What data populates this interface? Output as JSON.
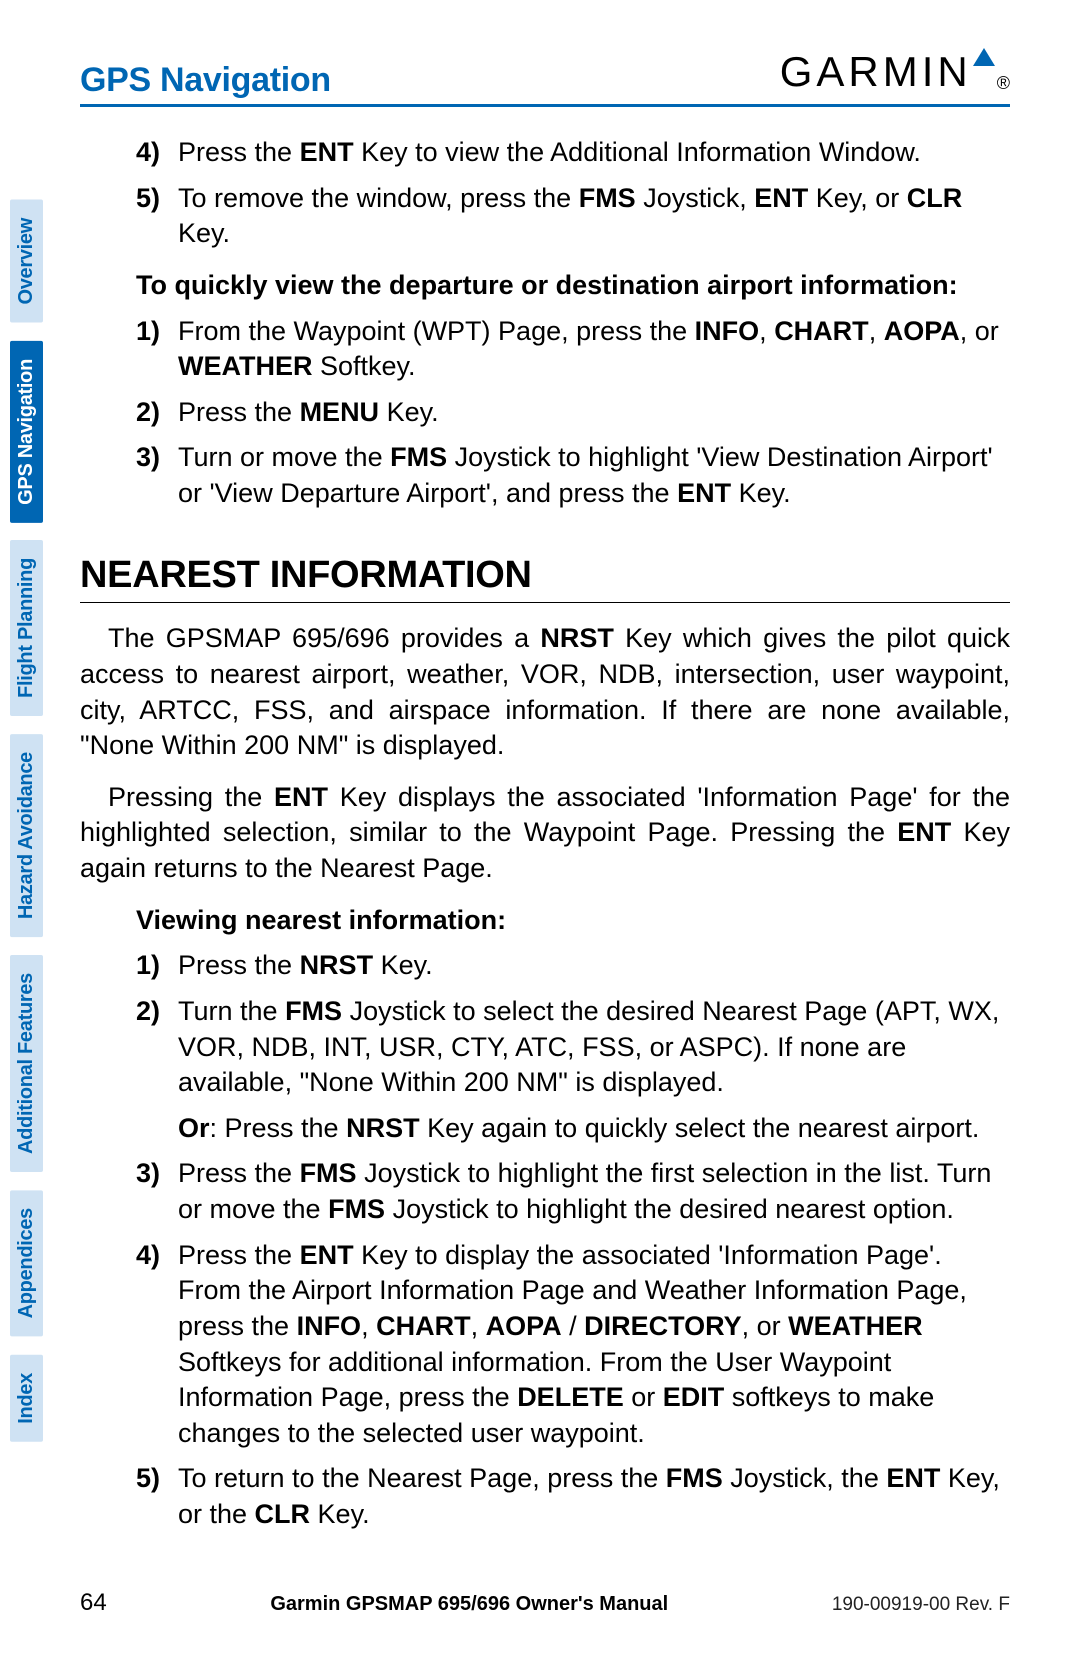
{
  "header": {
    "section_title": "GPS Navigation",
    "logo_text": "GARMIN"
  },
  "side_tabs": [
    {
      "label": "Overview",
      "active": false
    },
    {
      "label": "GPS Navigation",
      "active": true
    },
    {
      "label": "Flight Planning",
      "active": false
    },
    {
      "label": "Hazard Avoidance",
      "active": false
    },
    {
      "label": "Additional Features",
      "active": false
    },
    {
      "label": "Appendices",
      "active": false
    },
    {
      "label": "Index",
      "active": false
    }
  ],
  "top_list": [
    {
      "num": "4)",
      "html": "Press the <b>ENT</b> Key to view the Additional Information Window."
    },
    {
      "num": "5)",
      "html": "To remove the window, press the <b>FMS</b> Joystick, <b>ENT</b> Key, or <b>CLR</b> Key."
    }
  ],
  "quick_view_heading": "To quickly view the departure or destination airport information:",
  "quick_view_list": [
    {
      "num": "1)",
      "html": "From the Waypoint (WPT) Page, press the <b>INFO</b>, <b>CHART</b>, <b>AOPA</b>, or <b>WEATHER</b> Softkey."
    },
    {
      "num": "2)",
      "html": "Press the <b>MENU</b> Key."
    },
    {
      "num": "3)",
      "html": "Turn or move the <b>FMS</b> Joystick to highlight 'View Destination Airport' or 'View Departure Airport', and press the <b>ENT</b> Key."
    }
  ],
  "h2": "Nearest Information",
  "paragraphs": [
    "The GPSMAP 695/696 provides a <b>NRST</b> Key which gives the pilot quick access to nearest airport, weather, VOR, NDB, intersection, user waypoint, city, ARTCC, FSS, and airspace information.  If there are none available, \"None Within 200 NM\" is displayed.",
    "Pressing the <b>ENT</b> Key displays the associated 'Information Page' for the highlighted selection, similar to the Waypoint Page.  Pressing the <b>ENT</b> Key again returns to the Nearest Page."
  ],
  "viewing_heading": "Viewing nearest information:",
  "viewing_list": [
    {
      "num": "1)",
      "html": "Press the <b>NRST</b> Key."
    },
    {
      "num": "2)",
      "html": "Turn the <b>FMS</b> Joystick to select the desired Nearest Page (APT, WX, VOR, NDB, INT, USR, CTY, ATC, FSS, or ASPC).  If none are available, \"None Within 200 NM\" is displayed.",
      "sub_html": "<b>Or</b>: Press the <b>NRST</b> Key again to quickly select the nearest airport."
    },
    {
      "num": "3)",
      "html": "Press the <b>FMS</b> Joystick to highlight the first selection in the list.  Turn or move the <b>FMS</b> Joystick to highlight the desired nearest option."
    },
    {
      "num": "4)",
      "html": "Press the <b>ENT</b> Key to display the associated 'Information Page'.  From the Airport Information Page and Weather Information Page, press the <b>INFO</b>, <b>CHART</b>, <b>AOPA</b> / <b>DIRECTORY</b>, or <b>WEATHER</b> Softkeys for additional information.  From the User Waypoint Information Page, press the <b>DELETE</b> or <b>EDIT</b> softkeys to make changes to the selected user waypoint."
    },
    {
      "num": "5)",
      "html": "To return to the Nearest Page, press the <b>FMS</b> Joystick, the <b>ENT</b> Key, or the <b>CLR</b> Key."
    }
  ],
  "footer": {
    "page_num": "64",
    "title": "Garmin GPSMAP 695/696 Owner's Manual",
    "rev": "190-00919-00  Rev. F"
  },
  "colors": {
    "brand_blue": "#0066b3",
    "tab_inactive_bg": "#cfe2f3"
  }
}
